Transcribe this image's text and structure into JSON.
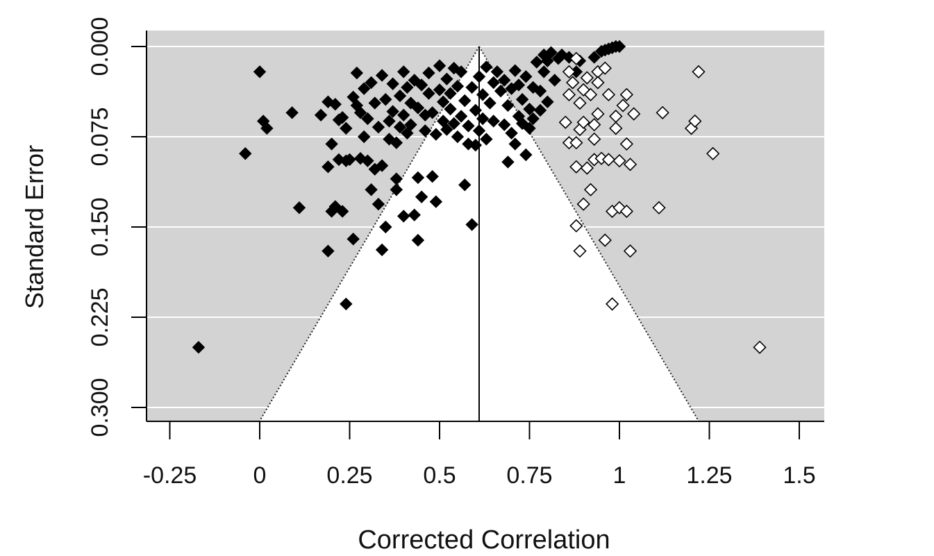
{
  "chart_data": {
    "type": "scatter",
    "subtype": "funnel plot",
    "title": "",
    "xlabel": "Corrected Correlation",
    "ylabel": "Standard Error",
    "xlim": [
      -0.32,
      1.57
    ],
    "ylim": [
      0.0,
      0.31
    ],
    "y_reversed": true,
    "x_ticks": [
      -0.25,
      0,
      0.25,
      0.5,
      0.75,
      1,
      1.25,
      1.5
    ],
    "x_tick_labels": [
      "-0.25",
      "0",
      "0.25",
      "0.5",
      "0.75",
      "1",
      "1.25",
      "1.5"
    ],
    "y_ticks": [
      0.0,
      0.075,
      0.15,
      0.225,
      0.3
    ],
    "y_tick_labels": [
      "0.000",
      "0.075",
      "0.150",
      "0.225",
      "0.300"
    ],
    "center_line_x": 0.61,
    "funnel_multiplier": 1.96,
    "background_color": "#d3d3d3",
    "funnel_fill": "#ffffff",
    "grid": "horizontal white lines",
    "legend": "none",
    "series": [
      {
        "marker": "filled diamond",
        "color": "#000000",
        "points": [
          [
            0.0,
            0.021
          ],
          [
            0.01,
            0.062
          ],
          [
            0.02,
            0.068
          ],
          [
            -0.04,
            0.089
          ],
          [
            0.09,
            0.055
          ],
          [
            0.11,
            0.134
          ],
          [
            -0.17,
            0.25
          ],
          [
            0.17,
            0.057
          ],
          [
            0.19,
            0.046
          ],
          [
            0.19,
            0.1
          ],
          [
            0.19,
            0.17
          ],
          [
            0.2,
            0.081
          ],
          [
            0.2,
            0.137
          ],
          [
            0.21,
            0.048
          ],
          [
            0.21,
            0.133
          ],
          [
            0.22,
            0.061
          ],
          [
            0.22,
            0.094
          ],
          [
            0.23,
            0.059
          ],
          [
            0.23,
            0.137
          ],
          [
            0.24,
            0.068
          ],
          [
            0.24,
            0.095
          ],
          [
            0.24,
            0.214
          ],
          [
            0.25,
            0.094
          ],
          [
            0.26,
            0.16
          ],
          [
            0.26,
            0.042
          ],
          [
            0.27,
            0.049
          ],
          [
            0.27,
            0.022
          ],
          [
            0.28,
            0.055
          ],
          [
            0.28,
            0.093
          ],
          [
            0.29,
            0.075
          ],
          [
            0.29,
            0.035
          ],
          [
            0.3,
            0.06
          ],
          [
            0.3,
            0.095
          ],
          [
            0.31,
            0.03
          ],
          [
            0.31,
            0.119
          ],
          [
            0.32,
            0.047
          ],
          [
            0.32,
            0.102
          ],
          [
            0.33,
            0.131
          ],
          [
            0.33,
            0.067
          ],
          [
            0.34,
            0.024
          ],
          [
            0.34,
            0.099
          ],
          [
            0.34,
            0.169
          ],
          [
            0.35,
            0.044
          ],
          [
            0.35,
            0.15
          ],
          [
            0.36,
            0.062
          ],
          [
            0.36,
            0.077
          ],
          [
            0.37,
            0.031
          ],
          [
            0.37,
            0.054
          ],
          [
            0.38,
            0.08
          ],
          [
            0.38,
            0.119
          ],
          [
            0.38,
            0.11
          ],
          [
            0.39,
            0.041
          ],
          [
            0.39,
            0.067
          ],
          [
            0.4,
            0.021
          ],
          [
            0.4,
            0.057
          ],
          [
            0.4,
            0.141
          ],
          [
            0.41,
            0.072
          ],
          [
            0.41,
            0.034
          ],
          [
            0.42,
            0.047
          ],
          [
            0.42,
            0.065
          ],
          [
            0.43,
            0.028
          ],
          [
            0.43,
            0.14
          ],
          [
            0.44,
            0.051
          ],
          [
            0.44,
            0.109
          ],
          [
            0.44,
            0.161
          ],
          [
            0.45,
            0.032
          ],
          [
            0.45,
            0.125
          ],
          [
            0.46,
            0.057
          ],
          [
            0.46,
            0.07
          ],
          [
            0.47,
            0.039
          ],
          [
            0.47,
            0.022
          ],
          [
            0.48,
            0.055
          ],
          [
            0.48,
            0.108
          ],
          [
            0.49,
            0.073
          ],
          [
            0.49,
            0.129
          ],
          [
            0.5,
            0.036
          ],
          [
            0.5,
            0.016
          ],
          [
            0.51,
            0.062
          ],
          [
            0.51,
            0.046
          ],
          [
            0.52,
            0.027
          ],
          [
            0.52,
            0.069
          ],
          [
            0.53,
            0.052
          ],
          [
            0.53,
            0.039
          ],
          [
            0.54,
            0.018
          ],
          [
            0.54,
            0.064
          ],
          [
            0.55,
            0.033
          ],
          [
            0.55,
            0.075
          ],
          [
            0.56,
            0.058
          ],
          [
            0.56,
            0.021
          ],
          [
            0.57,
            0.045
          ],
          [
            0.57,
            0.115
          ],
          [
            0.58,
            0.066
          ],
          [
            0.58,
            0.081
          ],
          [
            0.59,
            0.034
          ],
          [
            0.59,
            0.148
          ],
          [
            0.6,
            0.053
          ],
          [
            0.6,
            0.082
          ],
          [
            0.61,
            0.025
          ],
          [
            0.61,
            0.07
          ],
          [
            0.62,
            0.04
          ],
          [
            0.62,
            0.06
          ],
          [
            0.63,
            0.017
          ],
          [
            0.63,
            0.077
          ],
          [
            0.64,
            0.047
          ],
          [
            0.65,
            0.03
          ],
          [
            0.65,
            0.062
          ],
          [
            0.66,
            0.021
          ],
          [
            0.67,
            0.037
          ],
          [
            0.68,
            0.065
          ],
          [
            0.68,
            0.028
          ],
          [
            0.69,
            0.049
          ],
          [
            0.69,
            0.096
          ],
          [
            0.7,
            0.072
          ],
          [
            0.7,
            0.035
          ],
          [
            0.71,
            0.02
          ],
          [
            0.71,
            0.081
          ],
          [
            0.72,
            0.058
          ],
          [
            0.72,
            0.032
          ],
          [
            0.73,
            0.064
          ],
          [
            0.73,
            0.044
          ],
          [
            0.74,
            0.025
          ],
          [
            0.74,
            0.09
          ],
          [
            0.75,
            0.052
          ],
          [
            0.75,
            0.068
          ],
          [
            0.76,
            0.034
          ],
          [
            0.76,
            0.06
          ],
          [
            0.77,
            0.013
          ],
          [
            0.78,
            0.037
          ],
          [
            0.78,
            0.053
          ],
          [
            0.79,
            0.021
          ],
          [
            0.79,
            0.007
          ],
          [
            0.8,
            0.046
          ],
          [
            0.8,
            0.012
          ],
          [
            0.81,
            0.005
          ],
          [
            0.82,
            0.028
          ],
          [
            0.83,
            0.01
          ],
          [
            0.84,
            0.007
          ],
          [
            0.86,
            0.009
          ],
          [
            0.88,
            0.021
          ],
          [
            0.89,
            0.012
          ],
          [
            0.93,
            0.009
          ],
          [
            0.95,
            0.004
          ],
          [
            0.96,
            0.003
          ],
          [
            0.97,
            0.002
          ],
          [
            0.98,
            0.001
          ],
          [
            0.99,
            0.0
          ],
          [
            1.0,
            0.0
          ]
        ]
      },
      {
        "marker": "open diamond",
        "color": "#000000",
        "points": [
          [
            0.86,
            0.021
          ],
          [
            0.86,
            0.04
          ],
          [
            0.85,
            0.063
          ],
          [
            0.86,
            0.08
          ],
          [
            0.87,
            0.03
          ],
          [
            0.88,
            0.08
          ],
          [
            0.88,
            0.1
          ],
          [
            0.88,
            0.149
          ],
          [
            0.89,
            0.047
          ],
          [
            0.89,
            0.069
          ],
          [
            0.89,
            0.17
          ],
          [
            0.9,
            0.063
          ],
          [
            0.9,
            0.131
          ],
          [
            0.9,
            0.036
          ],
          [
            0.91,
            0.026
          ],
          [
            0.91,
            0.101
          ],
          [
            0.92,
            0.119
          ],
          [
            0.92,
            0.04
          ],
          [
            0.93,
            0.077
          ],
          [
            0.93,
            0.065
          ],
          [
            0.93,
            0.094
          ],
          [
            0.94,
            0.021
          ],
          [
            0.94,
            0.056
          ],
          [
            0.95,
            0.093
          ],
          [
            0.96,
            0.161
          ],
          [
            0.97,
            0.04
          ],
          [
            0.97,
            0.094
          ],
          [
            0.98,
            0.137
          ],
          [
            0.98,
            0.214
          ],
          [
            0.99,
            0.058
          ],
          [
            0.99,
            0.068
          ],
          [
            1.0,
            0.095
          ],
          [
            1.0,
            0.134
          ],
          [
            1.01,
            0.049
          ],
          [
            1.02,
            0.04
          ],
          [
            1.02,
            0.081
          ],
          [
            1.03,
            0.098
          ],
          [
            1.03,
            0.17
          ],
          [
            1.04,
            0.056
          ],
          [
            1.11,
            0.134
          ],
          [
            1.12,
            0.055
          ],
          [
            1.2,
            0.068
          ],
          [
            1.21,
            0.062
          ],
          [
            1.22,
            0.021
          ],
          [
            1.26,
            0.089
          ],
          [
            1.39,
            0.25
          ],
          [
            1.02,
            0.137
          ],
          [
            0.96,
            0.018
          ],
          [
            0.88,
            0.01
          ],
          [
            0.94,
            0.03
          ]
        ]
      }
    ]
  }
}
